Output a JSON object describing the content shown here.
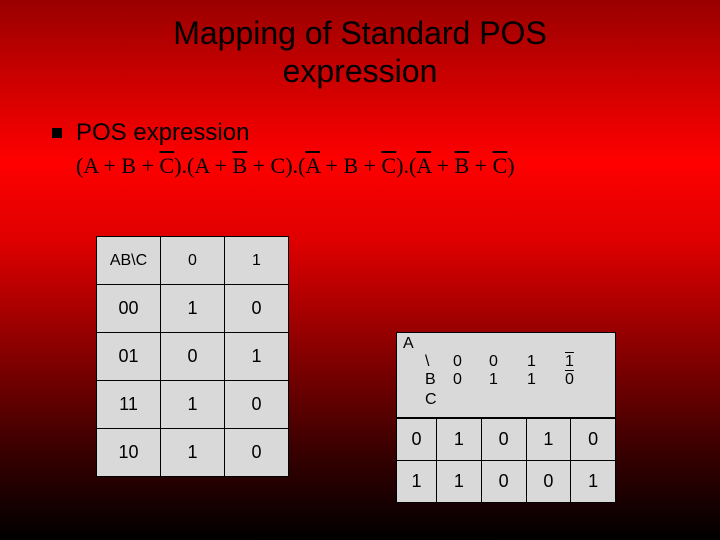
{
  "title_line1": "Mapping of Standard POS",
  "title_line2": "expression",
  "subtitle": "POS expression",
  "expr": {
    "open": "(A + B + ",
    "c_bar": "C",
    "mid1": ").(A + ",
    "b_bar1": "B",
    "mid2": " + C).(",
    "a_bar1": "A",
    "mid3": " + B + ",
    "c_bar2": "C",
    "mid4": ").(",
    "a_bar2": "A",
    "mid5": " + ",
    "b_bar2": "B",
    "mid6": " + ",
    "c_bar3": "C",
    "close": ")"
  },
  "truth": {
    "hdr": [
      "AB\\C",
      "0",
      "1"
    ],
    "rows": [
      [
        "00",
        "1",
        "0"
      ],
      [
        "01",
        "0",
        "1"
      ],
      [
        "11",
        "1",
        "0"
      ],
      [
        "10",
        "1",
        "0"
      ]
    ]
  },
  "kmap": {
    "A": "A",
    "B": "B",
    "C": "C",
    "back": "\\",
    "col_top": [
      "0",
      "0",
      "1",
      "1"
    ],
    "col_bot": [
      "0",
      "1",
      "1",
      "0"
    ],
    "rows": [
      [
        "0",
        "1",
        "0",
        "1",
        "0"
      ],
      [
        "1",
        "1",
        "0",
        "0",
        "1"
      ]
    ]
  },
  "colors": {
    "cell_bg": "#d9d9d9",
    "text": "#000000"
  }
}
